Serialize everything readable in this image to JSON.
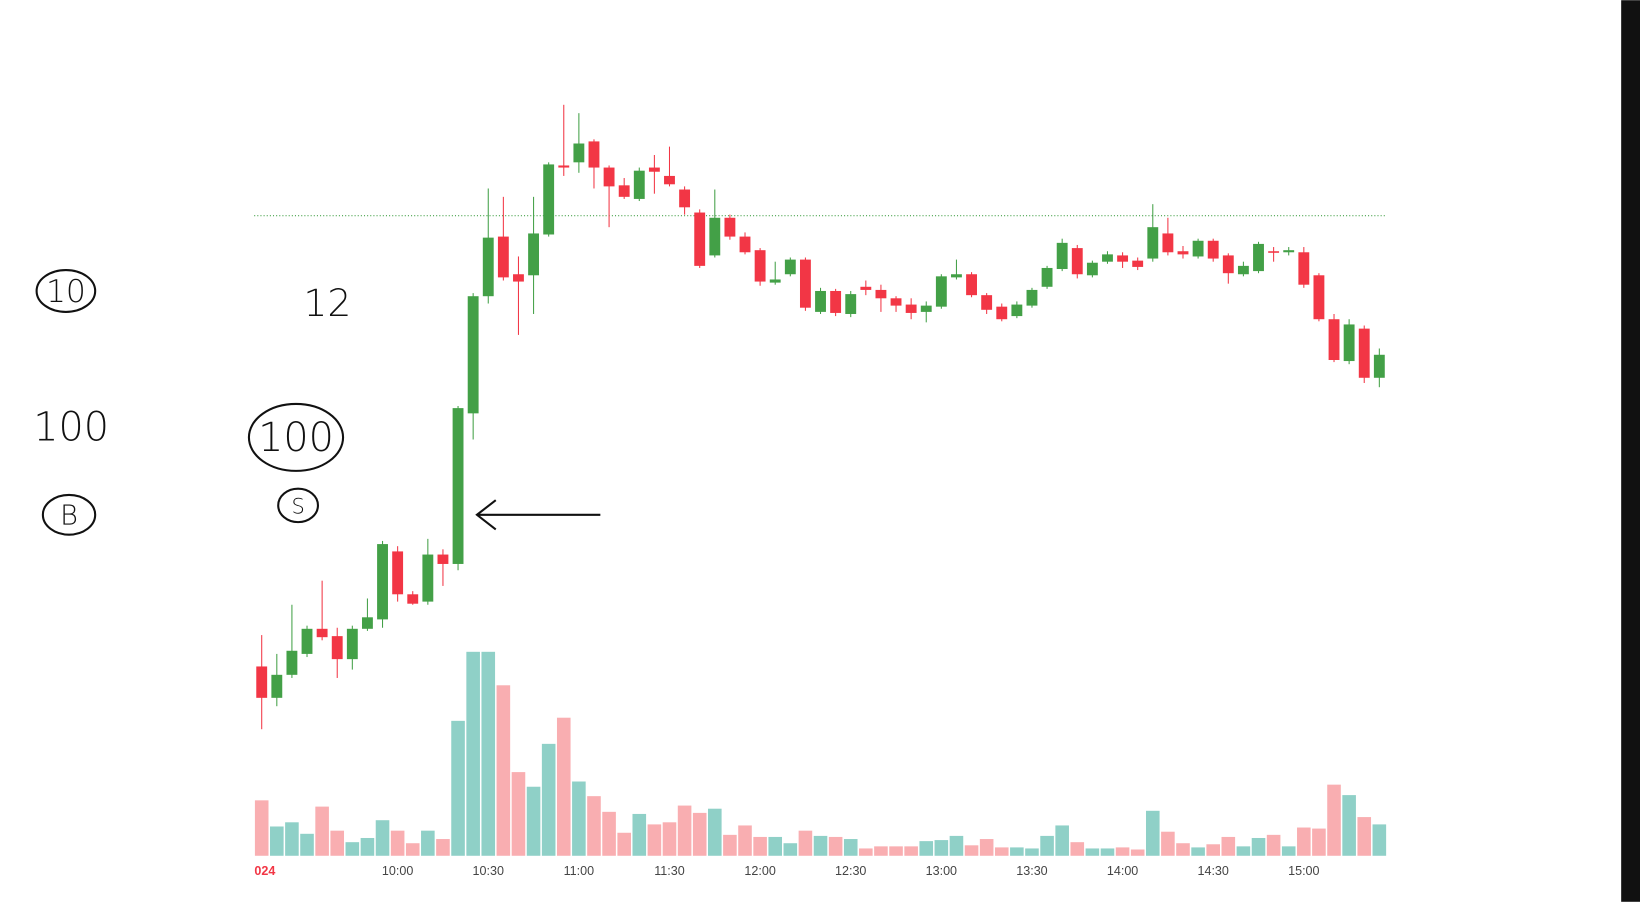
{
  "chart_data": {
    "type": "candlestick",
    "up_color": "#43a047",
    "down_color": "#f23645",
    "volume_up_color": "#8fd0c7",
    "volume_down_color": "#f9aeb1",
    "ylim": [
      0,
      600
    ],
    "xlim": [
      -0.5,
      74.5
    ],
    "xticks": [
      {
        "value": 0,
        "label": "024",
        "color": "#f23645"
      },
      {
        "value": 9,
        "label": "10:00"
      },
      {
        "value": 15,
        "label": "10:30"
      },
      {
        "value": 21,
        "label": "11:00"
      },
      {
        "value": 27,
        "label": "11:30"
      },
      {
        "value": 33,
        "label": "12:00"
      },
      {
        "value": 39,
        "label": "12:30"
      },
      {
        "value": 45,
        "label": "13:00"
      },
      {
        "value": 51,
        "label": "13:30"
      },
      {
        "value": 57,
        "label": "14:00"
      },
      {
        "value": 63,
        "label": "14:30"
      },
      {
        "value": 69,
        "label": "15:00"
      }
    ],
    "open": [
      63,
      33,
      55,
      75,
      99,
      92,
      70,
      99,
      108,
      173,
      132,
      125,
      170,
      161,
      305,
      417,
      474,
      438,
      437,
      476,
      542,
      545,
      565,
      540,
      523,
      510,
      540,
      532,
      519,
      497,
      456,
      492,
      474,
      461,
      430,
      438,
      452,
      402,
      422,
      400,
      426,
      423,
      415,
      409,
      402,
      407,
      435,
      438,
      418,
      407,
      398,
      408,
      426,
      443,
      463,
      437,
      450,
      456,
      451,
      453,
      477,
      460,
      455,
      470,
      456,
      438,
      441,
      460,
      459,
      459,
      437,
      395,
      355,
      386,
      339
    ],
    "high": [
      93,
      75,
      122,
      102,
      145,
      100,
      102,
      128,
      183,
      178,
      135,
      185,
      175,
      312,
      420,
      520,
      512,
      455,
      512,
      545,
      600,
      592,
      567,
      542,
      530,
      540,
      552,
      560,
      522,
      500,
      519,
      495,
      478,
      463,
      450,
      454,
      454,
      425,
      424,
      422,
      432,
      428,
      417,
      415,
      412,
      438,
      452,
      440,
      420,
      410,
      412,
      425,
      446,
      472,
      466,
      451,
      460,
      459,
      454,
      505,
      492,
      465,
      472,
      472,
      458,
      450,
      469,
      464,
      464,
      464,
      439,
      400,
      395,
      389,
      367
    ],
    "low": [
      3,
      25,
      52,
      72,
      88,
      52,
      60,
      97,
      100,
      125,
      122,
      122,
      140,
      155,
      280,
      410,
      432,
      380,
      400,
      474,
      532,
      535,
      520,
      483,
      510,
      508,
      515,
      522,
      495,
      444,
      454,
      471,
      457,
      427,
      428,
      436,
      403,
      400,
      398,
      397,
      418,
      402,
      402,
      395,
      392,
      405,
      433,
      416,
      400,
      393,
      396,
      406,
      424,
      441,
      434,
      435,
      448,
      444,
      442,
      450,
      456,
      453,
      453,
      450,
      429,
      436,
      439,
      450,
      456,
      425,
      393,
      354,
      352,
      334,
      330
    ],
    "close": [
      33,
      55,
      78,
      99,
      91,
      70,
      99,
      110,
      180,
      132,
      123,
      170,
      161,
      310,
      417,
      473,
      435,
      431,
      477,
      543,
      540,
      563,
      540,
      522,
      512,
      537,
      536,
      524,
      502,
      446,
      492,
      474,
      459,
      431,
      433,
      452,
      406,
      422,
      401,
      419,
      423,
      415,
      408,
      401,
      408,
      436,
      438,
      418,
      404,
      395,
      409,
      423,
      444,
      468,
      438,
      449,
      457,
      450,
      445,
      483,
      459,
      457,
      470,
      453,
      439,
      446,
      467,
      459,
      461,
      428,
      395,
      356,
      390,
      339,
      361
    ],
    "price_line": 494,
    "price_line_color": "#43a047",
    "volume": {
      "ylim": [
        0,
        200
      ],
      "values": [
        53,
        28,
        32,
        21,
        47,
        24,
        13,
        17,
        34,
        24,
        12,
        24,
        16,
        129,
        195,
        195,
        163,
        80,
        66,
        107,
        132,
        71,
        57,
        42,
        22,
        40,
        30,
        32,
        48,
        41,
        45,
        20,
        29,
        18,
        18,
        12,
        24,
        19,
        18,
        16,
        7,
        9,
        9,
        9,
        14,
        15,
        19,
        10,
        16,
        8,
        8,
        7,
        19,
        29,
        13,
        7,
        7,
        8,
        6,
        43,
        23,
        12,
        8,
        11,
        18,
        9,
        17,
        20,
        9,
        27,
        26,
        68,
        58,
        37,
        30
      ]
    }
  },
  "annotations": [
    "10",
    "12",
    "100",
    "100",
    "B",
    "S"
  ]
}
